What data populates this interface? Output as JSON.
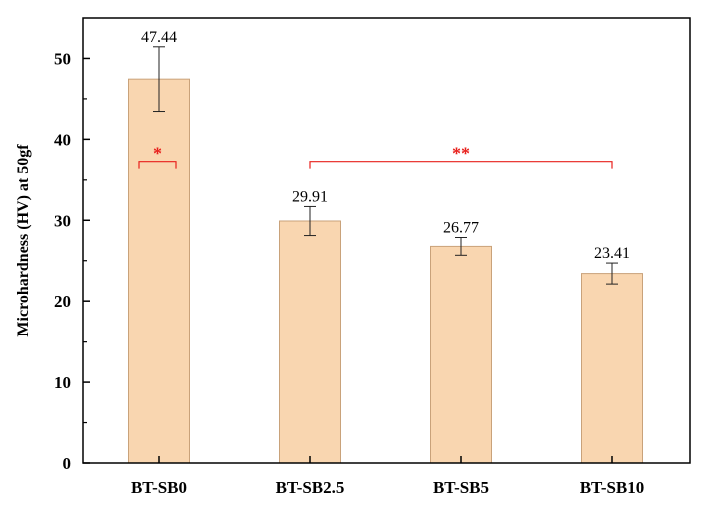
{
  "chart_data": {
    "type": "bar",
    "categories": [
      "BT-SB0",
      "BT-SB2.5",
      "BT-SB5",
      "BT-SB10"
    ],
    "values": [
      47.44,
      29.91,
      26.77,
      23.41
    ],
    "errors": [
      4.0,
      1.8,
      1.1,
      1.3
    ],
    "data_labels": [
      "47.44",
      "29.91",
      "26.77",
      "23.41"
    ],
    "title": "",
    "xlabel": "",
    "ylabel": "Microhardness (HV) at 50gf",
    "ylim": [
      0,
      55
    ],
    "yticks": [
      0,
      10,
      20,
      30,
      40,
      50
    ],
    "grid": false,
    "bar_fill": "#f9d6b0",
    "bar_stroke": "#c9a27a",
    "significance": [
      {
        "label": "*",
        "from_category": "BT-SB0",
        "to_category": "BT-SB0",
        "level": 36.5,
        "color": "#e8201c"
      },
      {
        "label": "**",
        "from_category": "BT-SB2.5",
        "to_category": "BT-SB10",
        "level": 36.5,
        "color": "#e8201c"
      }
    ]
  }
}
